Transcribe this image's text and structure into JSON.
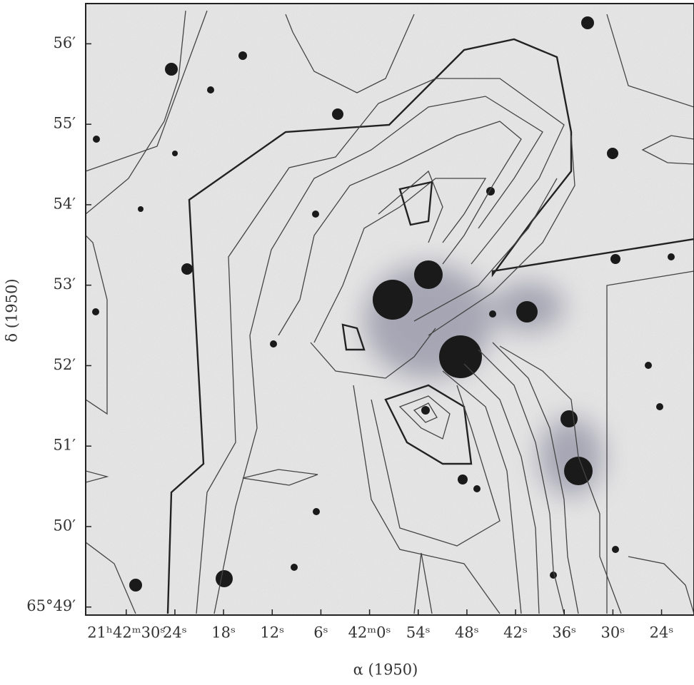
{
  "chart_data": {
    "type": "contour",
    "xlabel": "α (1950)",
    "ylabel": "δ (1950)",
    "xlim": [
      35,
      -40
    ],
    "ylim": [
      48.9,
      56.5
    ],
    "xticks": [
      {
        "value": 30,
        "label": "21ʰ42ᵐ30ˢ"
      },
      {
        "value": 24,
        "label": "24ˢ"
      },
      {
        "value": 18,
        "label": "18ˢ"
      },
      {
        "value": 12,
        "label": "12ˢ"
      },
      {
        "value": 6,
        "label": "6ˢ"
      },
      {
        "value": 0,
        "label": "42ᵐ0ˢ"
      },
      {
        "value": -6,
        "label": "54ˢ"
      },
      {
        "value": -12,
        "label": "48ˢ"
      },
      {
        "value": -18,
        "label": "42ˢ"
      },
      {
        "value": -24,
        "label": "36ˢ"
      },
      {
        "value": -30,
        "label": "30ˢ"
      },
      {
        "value": -36,
        "label": "24ˢ"
      }
    ],
    "yticks": [
      {
        "value": 49,
        "label": "65°49′"
      },
      {
        "value": 50,
        "label": "50′"
      },
      {
        "value": 51,
        "label": "51′"
      },
      {
        "value": 52,
        "label": "52′"
      },
      {
        "value": 53,
        "label": "53′"
      },
      {
        "value": 54,
        "label": "54′"
      },
      {
        "value": 55,
        "label": "55′"
      },
      {
        "value": 56,
        "label": "56′"
      }
    ]
  }
}
